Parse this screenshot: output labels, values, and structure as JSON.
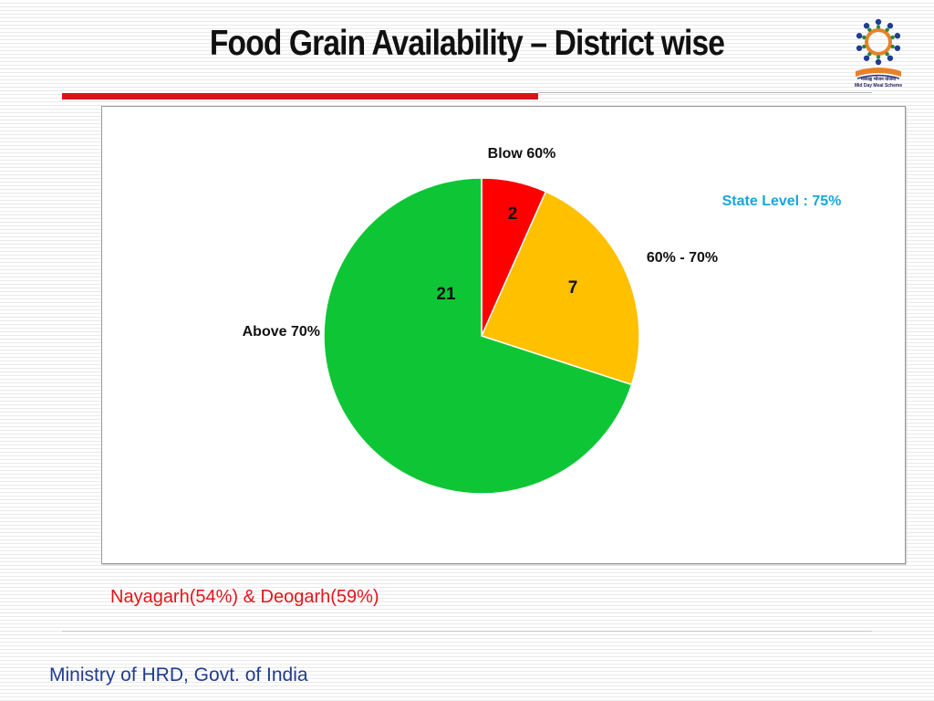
{
  "slide": {
    "title": "Food Grain Availability – District wise",
    "annotation": "Nayagarh(54%) & Deogarh(59%)",
    "footer": "Ministry of HRD, Govt. of India",
    "logo": {
      "icon": "mid-day-meal-logo-icon",
      "line1": "मध्याह्न भोजन योजना",
      "line2": "Mid Day Meal Scheme"
    },
    "colors": {
      "title_rule": "#d6141c",
      "annotation": "#e3141b",
      "footer": "#1f3c8f"
    }
  },
  "chart_data": {
    "type": "pie",
    "title": "",
    "categories": [
      "Blow 60%",
      "60% - 70%",
      "Above 70%"
    ],
    "values": [
      2,
      7,
      21
    ],
    "colors": [
      "#ff0000",
      "#ffc000",
      "#0ec635"
    ],
    "data_labels": [
      "2",
      "7",
      "21"
    ],
    "annotation": "State Level : 75%",
    "annotation_color": "#18a5dc",
    "legend": "none"
  }
}
